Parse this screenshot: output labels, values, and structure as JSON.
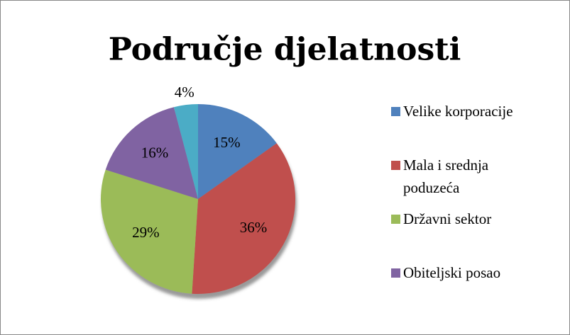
{
  "chart_data": {
    "type": "pie",
    "title": "Područje djelatnosti",
    "categories": [
      "Velike korporacije",
      "Mala i srednja poduzeća",
      "Državni sektor",
      "Obiteljski posao",
      null
    ],
    "values": [
      15,
      36,
      29,
      16,
      4
    ],
    "value_labels": [
      "15%",
      "36%",
      "29%",
      "16%",
      "4%"
    ],
    "colors": [
      "#4f81bd",
      "#c0504d",
      "#9bbb59",
      "#8064a2",
      "#4bacc6"
    ],
    "legend": "right"
  }
}
